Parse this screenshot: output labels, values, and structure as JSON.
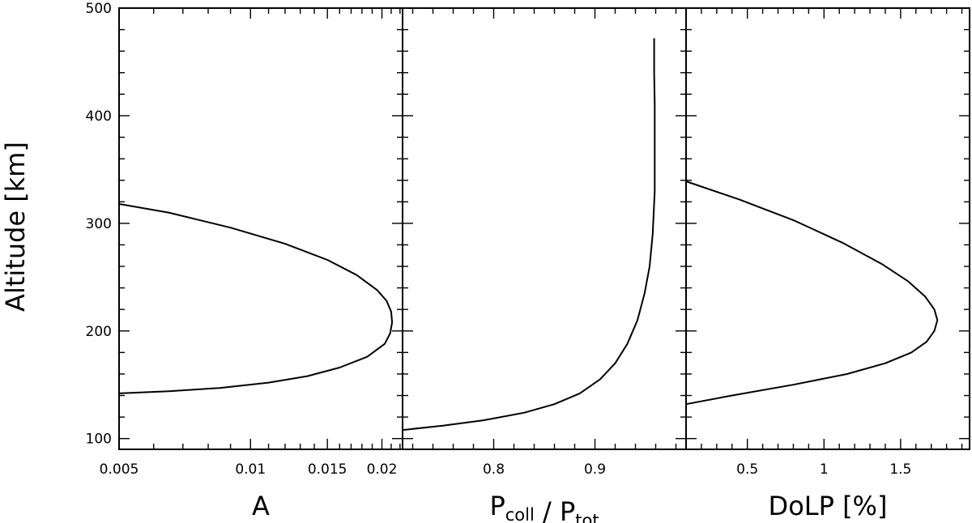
{
  "chart_data": {
    "type": "line",
    "ylabel": "Altitude [km]",
    "ylim": [
      90,
      500
    ],
    "yticks": [
      100,
      200,
      300,
      400,
      500
    ],
    "grid": false,
    "panels": [
      {
        "xlabel": {
          "main": "A",
          "parts": []
        },
        "xlim": [
          0.005,
          0.0223
        ],
        "xscale": "log",
        "xticks": [
          0.005,
          0.01,
          0.015,
          0.02
        ],
        "xtick_labels": [
          "0.005",
          "0.01",
          "0.015",
          "0.02"
        ],
        "series": [
          {
            "x": [
              0.005,
              0.0065,
              0.0085,
              0.011,
              0.0135,
              0.016,
              0.0185,
              0.0203,
              0.0209,
              0.0211,
              0.021,
              0.0205,
              0.0195,
              0.0175,
              0.015,
              0.012,
              0.009,
              0.0065,
              0.005
            ],
            "y": [
              142,
              144,
              147,
              152,
              158,
              166,
              176,
              188,
              198,
              208,
              218,
              228,
              238,
              252,
              266,
              281,
              296,
              310,
              318
            ]
          }
        ]
      },
      {
        "xlabel": {
          "main": "",
          "parts": [
            {
              "text": "P",
              "sub": "coll"
            },
            {
              "text": " / ",
              "sub": ""
            },
            {
              "text": "P",
              "sub": "tot"
            }
          ]
        },
        "xlim": [
          0.71,
          0.99
        ],
        "xscale": "linear",
        "xticks": [
          0.8,
          0.9
        ],
        "xtick_labels": [
          "0.8",
          "0.9"
        ],
        "series": [
          {
            "x": [
              0.71,
              0.75,
              0.79,
              0.83,
              0.86,
              0.885,
              0.905,
              0.92,
              0.932,
              0.942,
              0.949,
              0.954,
              0.957,
              0.959,
              0.959,
              0.959,
              0.9585,
              0.9585
            ],
            "y": [
              108,
              112,
              117,
              124,
              132,
              142,
              155,
              170,
              188,
              210,
              235,
              260,
              290,
              330,
              370,
              410,
              440,
              472
            ]
          }
        ]
      },
      {
        "xlabel": {
          "main": "DoLP [%]",
          "parts": []
        },
        "xlim": [
          0.1,
          1.95
        ],
        "xscale": "linear",
        "xticks": [
          0.5,
          1,
          1.5
        ],
        "xtick_labels": [
          "0.5",
          "1",
          "1.5"
        ],
        "series": [
          {
            "x": [
              0.1,
              0.4,
              0.8,
              1.15,
              1.4,
              1.57,
              1.67,
              1.72,
              1.74,
              1.72,
              1.66,
              1.55,
              1.38,
              1.12,
              0.8,
              0.45,
              0.1
            ],
            "y": [
              132,
              140,
              150,
              160,
              170,
              180,
              190,
              200,
              210,
              220,
              232,
              246,
              262,
              282,
              303,
              322,
              339
            ]
          }
        ]
      }
    ]
  }
}
